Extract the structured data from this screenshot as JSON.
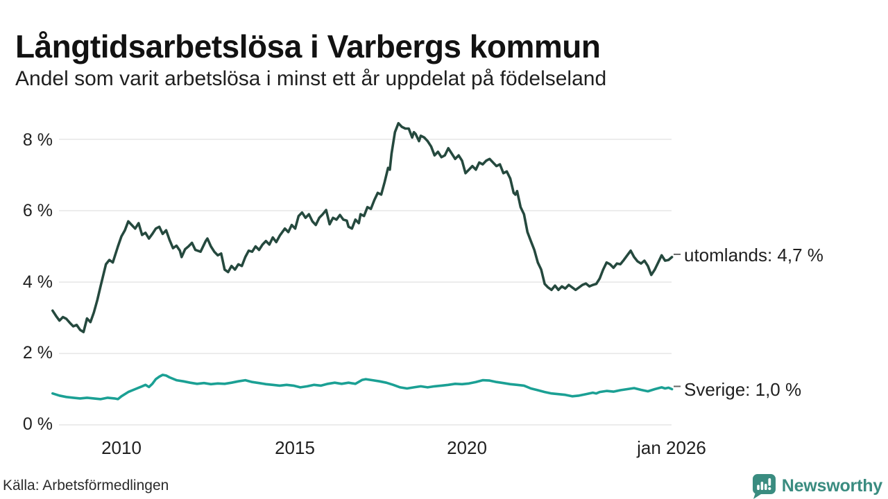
{
  "header": {
    "title": "Långtidsarbetslösa i Varbergs kommun",
    "subtitle": "Andel som varit arbetslösa i minst ett år uppdelat på födelseland"
  },
  "footer": {
    "source": "Källa: Arbetsförmedlingen",
    "brand": "Newsworthy"
  },
  "colors": {
    "utomlands_line": "#25493e",
    "sverige_line": "#1ba094",
    "gridline": "#e5e5e5",
    "connector": "#666666",
    "text": "#1f1f1f",
    "brand_teal": "#3a8c80"
  },
  "chart_data": {
    "type": "line",
    "title": "Långtidsarbetslösa i Varbergs kommun",
    "subtitle": "Andel som varit arbetslösa i minst ett år uppdelat på födelseland",
    "xlabel": "",
    "ylabel": "",
    "x_unit": "year (monthly data)",
    "xlim": [
      2008.0,
      2026.08
    ],
    "ylim": [
      0,
      8.6
    ],
    "grid": "horizontal",
    "legend_position": "right-end-labels",
    "y_ticks": [
      {
        "value": 8,
        "label": "8 %"
      },
      {
        "value": 6,
        "label": "6 %"
      },
      {
        "value": 4,
        "label": "4 %"
      },
      {
        "value": 2,
        "label": "2 %"
      },
      {
        "value": 0,
        "label": "0 %"
      }
    ],
    "x_ticks": [
      {
        "value": 2010,
        "label": "2010"
      },
      {
        "value": 2015,
        "label": "2015"
      },
      {
        "value": 2020,
        "label": "2020"
      },
      {
        "value": 2026,
        "label": "jan 2026"
      }
    ],
    "series": [
      {
        "name": "utomlands",
        "label": "utomlands: 4,7 %",
        "end_value": 4.7,
        "color": "#25493e",
        "points": [
          [
            2008.0,
            3.2
          ],
          [
            2008.1,
            3.05
          ],
          [
            2008.2,
            2.92
          ],
          [
            2008.3,
            3.02
          ],
          [
            2008.4,
            2.97
          ],
          [
            2008.5,
            2.86
          ],
          [
            2008.6,
            2.76
          ],
          [
            2008.7,
            2.8
          ],
          [
            2008.8,
            2.66
          ],
          [
            2008.9,
            2.6
          ],
          [
            2009.0,
            2.98
          ],
          [
            2009.1,
            2.88
          ],
          [
            2009.2,
            3.15
          ],
          [
            2009.3,
            3.5
          ],
          [
            2009.4,
            3.9
          ],
          [
            2009.55,
            4.5
          ],
          [
            2009.65,
            4.62
          ],
          [
            2009.75,
            4.55
          ],
          [
            2009.9,
            5.0
          ],
          [
            2010.0,
            5.28
          ],
          [
            2010.1,
            5.45
          ],
          [
            2010.2,
            5.7
          ],
          [
            2010.3,
            5.6
          ],
          [
            2010.4,
            5.5
          ],
          [
            2010.5,
            5.65
          ],
          [
            2010.6,
            5.32
          ],
          [
            2010.7,
            5.38
          ],
          [
            2010.8,
            5.22
          ],
          [
            2010.9,
            5.35
          ],
          [
            2011.0,
            5.5
          ],
          [
            2011.1,
            5.55
          ],
          [
            2011.2,
            5.35
          ],
          [
            2011.3,
            5.45
          ],
          [
            2011.4,
            5.18
          ],
          [
            2011.5,
            4.95
          ],
          [
            2011.6,
            5.02
          ],
          [
            2011.7,
            4.88
          ],
          [
            2011.75,
            4.7
          ],
          [
            2011.85,
            4.92
          ],
          [
            2011.95,
            5.0
          ],
          [
            2012.05,
            5.1
          ],
          [
            2012.15,
            4.9
          ],
          [
            2012.3,
            4.85
          ],
          [
            2012.45,
            5.15
          ],
          [
            2012.5,
            5.22
          ],
          [
            2012.6,
            5.0
          ],
          [
            2012.7,
            4.85
          ],
          [
            2012.8,
            4.75
          ],
          [
            2012.9,
            4.8
          ],
          [
            2013.0,
            4.35
          ],
          [
            2013.1,
            4.28
          ],
          [
            2013.2,
            4.45
          ],
          [
            2013.3,
            4.35
          ],
          [
            2013.4,
            4.5
          ],
          [
            2013.5,
            4.45
          ],
          [
            2013.6,
            4.7
          ],
          [
            2013.7,
            4.88
          ],
          [
            2013.8,
            4.85
          ],
          [
            2013.9,
            5.0
          ],
          [
            2014.0,
            4.9
          ],
          [
            2014.1,
            5.05
          ],
          [
            2014.2,
            5.15
          ],
          [
            2014.3,
            5.05
          ],
          [
            2014.4,
            5.25
          ],
          [
            2014.5,
            5.12
          ],
          [
            2014.6,
            5.3
          ],
          [
            2014.75,
            5.5
          ],
          [
            2014.85,
            5.4
          ],
          [
            2014.95,
            5.6
          ],
          [
            2015.05,
            5.5
          ],
          [
            2015.15,
            5.85
          ],
          [
            2015.25,
            5.95
          ],
          [
            2015.35,
            5.8
          ],
          [
            2015.45,
            5.9
          ],
          [
            2015.55,
            5.7
          ],
          [
            2015.65,
            5.6
          ],
          [
            2015.75,
            5.8
          ],
          [
            2015.85,
            5.9
          ],
          [
            2015.95,
            6.02
          ],
          [
            2016.05,
            5.62
          ],
          [
            2016.15,
            5.8
          ],
          [
            2016.25,
            5.75
          ],
          [
            2016.35,
            5.88
          ],
          [
            2016.45,
            5.75
          ],
          [
            2016.55,
            5.72
          ],
          [
            2016.6,
            5.55
          ],
          [
            2016.7,
            5.5
          ],
          [
            2016.8,
            5.75
          ],
          [
            2016.9,
            5.65
          ],
          [
            2016.95,
            5.9
          ],
          [
            2017.05,
            5.85
          ],
          [
            2017.15,
            6.1
          ],
          [
            2017.25,
            6.05
          ],
          [
            2017.35,
            6.3
          ],
          [
            2017.45,
            6.5
          ],
          [
            2017.55,
            6.45
          ],
          [
            2017.65,
            6.8
          ],
          [
            2017.75,
            7.2
          ],
          [
            2017.8,
            7.15
          ],
          [
            2017.85,
            7.6
          ],
          [
            2017.95,
            8.2
          ],
          [
            2018.05,
            8.45
          ],
          [
            2018.15,
            8.35
          ],
          [
            2018.25,
            8.3
          ],
          [
            2018.35,
            8.3
          ],
          [
            2018.45,
            8.05
          ],
          [
            2018.5,
            8.2
          ],
          [
            2018.55,
            8.15
          ],
          [
            2018.65,
            7.95
          ],
          [
            2018.7,
            8.1
          ],
          [
            2018.8,
            8.05
          ],
          [
            2018.9,
            7.95
          ],
          [
            2019.0,
            7.8
          ],
          [
            2019.1,
            7.55
          ],
          [
            2019.2,
            7.65
          ],
          [
            2019.3,
            7.5
          ],
          [
            2019.4,
            7.55
          ],
          [
            2019.5,
            7.75
          ],
          [
            2019.6,
            7.6
          ],
          [
            2019.7,
            7.45
          ],
          [
            2019.8,
            7.55
          ],
          [
            2019.9,
            7.4
          ],
          [
            2020.0,
            7.05
          ],
          [
            2020.1,
            7.15
          ],
          [
            2020.2,
            7.25
          ],
          [
            2020.3,
            7.15
          ],
          [
            2020.4,
            7.35
          ],
          [
            2020.5,
            7.3
          ],
          [
            2020.6,
            7.4
          ],
          [
            2020.7,
            7.45
          ],
          [
            2020.8,
            7.35
          ],
          [
            2020.9,
            7.25
          ],
          [
            2021.0,
            7.3
          ],
          [
            2021.1,
            7.05
          ],
          [
            2021.2,
            7.1
          ],
          [
            2021.3,
            6.9
          ],
          [
            2021.4,
            6.5
          ],
          [
            2021.45,
            6.45
          ],
          [
            2021.5,
            6.55
          ],
          [
            2021.6,
            6.1
          ],
          [
            2021.7,
            5.9
          ],
          [
            2021.8,
            5.4
          ],
          [
            2021.9,
            5.15
          ],
          [
            2022.0,
            4.9
          ],
          [
            2022.1,
            4.55
          ],
          [
            2022.2,
            4.35
          ],
          [
            2022.3,
            3.95
          ],
          [
            2022.4,
            3.85
          ],
          [
            2022.5,
            3.78
          ],
          [
            2022.6,
            3.9
          ],
          [
            2022.7,
            3.78
          ],
          [
            2022.8,
            3.88
          ],
          [
            2022.9,
            3.82
          ],
          [
            2023.0,
            3.92
          ],
          [
            2023.1,
            3.85
          ],
          [
            2023.2,
            3.78
          ],
          [
            2023.3,
            3.85
          ],
          [
            2023.4,
            3.92
          ],
          [
            2023.5,
            3.96
          ],
          [
            2023.6,
            3.88
          ],
          [
            2023.7,
            3.92
          ],
          [
            2023.8,
            3.95
          ],
          [
            2023.9,
            4.1
          ],
          [
            2024.0,
            4.35
          ],
          [
            2024.1,
            4.55
          ],
          [
            2024.2,
            4.5
          ],
          [
            2024.3,
            4.4
          ],
          [
            2024.4,
            4.52
          ],
          [
            2024.5,
            4.5
          ],
          [
            2024.6,
            4.62
          ],
          [
            2024.7,
            4.75
          ],
          [
            2024.8,
            4.88
          ],
          [
            2024.9,
            4.7
          ],
          [
            2025.0,
            4.58
          ],
          [
            2025.1,
            4.52
          ],
          [
            2025.2,
            4.6
          ],
          [
            2025.3,
            4.45
          ],
          [
            2025.4,
            4.2
          ],
          [
            2025.5,
            4.35
          ],
          [
            2025.6,
            4.55
          ],
          [
            2025.7,
            4.75
          ],
          [
            2025.8,
            4.6
          ],
          [
            2025.9,
            4.62
          ],
          [
            2026.0,
            4.7
          ]
        ]
      },
      {
        "name": "Sverige",
        "label": "Sverige: 1,0 %",
        "end_value": 1.0,
        "color": "#1ba094",
        "points": [
          [
            2008.0,
            0.88
          ],
          [
            2008.2,
            0.82
          ],
          [
            2008.4,
            0.78
          ],
          [
            2008.6,
            0.76
          ],
          [
            2008.8,
            0.74
          ],
          [
            2009.0,
            0.76
          ],
          [
            2009.2,
            0.74
          ],
          [
            2009.4,
            0.72
          ],
          [
            2009.6,
            0.76
          ],
          [
            2009.8,
            0.74
          ],
          [
            2009.9,
            0.72
          ],
          [
            2010.0,
            0.8
          ],
          [
            2010.2,
            0.92
          ],
          [
            2010.4,
            1.0
          ],
          [
            2010.6,
            1.08
          ],
          [
            2010.7,
            1.12
          ],
          [
            2010.8,
            1.06
          ],
          [
            2010.9,
            1.15
          ],
          [
            2011.0,
            1.28
          ],
          [
            2011.1,
            1.35
          ],
          [
            2011.2,
            1.4
          ],
          [
            2011.3,
            1.38
          ],
          [
            2011.4,
            1.33
          ],
          [
            2011.6,
            1.25
          ],
          [
            2011.8,
            1.22
          ],
          [
            2012.0,
            1.18
          ],
          [
            2012.2,
            1.15
          ],
          [
            2012.4,
            1.17
          ],
          [
            2012.6,
            1.14
          ],
          [
            2012.8,
            1.16
          ],
          [
            2013.0,
            1.15
          ],
          [
            2013.2,
            1.18
          ],
          [
            2013.4,
            1.22
          ],
          [
            2013.6,
            1.25
          ],
          [
            2013.8,
            1.2
          ],
          [
            2014.0,
            1.17
          ],
          [
            2014.2,
            1.14
          ],
          [
            2014.4,
            1.12
          ],
          [
            2014.6,
            1.1
          ],
          [
            2014.8,
            1.12
          ],
          [
            2015.0,
            1.1
          ],
          [
            2015.2,
            1.05
          ],
          [
            2015.4,
            1.08
          ],
          [
            2015.6,
            1.12
          ],
          [
            2015.8,
            1.1
          ],
          [
            2016.0,
            1.15
          ],
          [
            2016.2,
            1.18
          ],
          [
            2016.4,
            1.15
          ],
          [
            2016.6,
            1.18
          ],
          [
            2016.8,
            1.15
          ],
          [
            2017.0,
            1.26
          ],
          [
            2017.1,
            1.28
          ],
          [
            2017.3,
            1.25
          ],
          [
            2017.5,
            1.22
          ],
          [
            2017.7,
            1.18
          ],
          [
            2017.9,
            1.12
          ],
          [
            2018.1,
            1.05
          ],
          [
            2018.3,
            1.02
          ],
          [
            2018.5,
            1.05
          ],
          [
            2018.7,
            1.08
          ],
          [
            2018.9,
            1.05
          ],
          [
            2019.1,
            1.08
          ],
          [
            2019.3,
            1.1
          ],
          [
            2019.5,
            1.12
          ],
          [
            2019.7,
            1.15
          ],
          [
            2019.9,
            1.14
          ],
          [
            2020.1,
            1.16
          ],
          [
            2020.3,
            1.2
          ],
          [
            2020.5,
            1.25
          ],
          [
            2020.7,
            1.24
          ],
          [
            2020.9,
            1.2
          ],
          [
            2021.1,
            1.17
          ],
          [
            2021.3,
            1.14
          ],
          [
            2021.5,
            1.12
          ],
          [
            2021.7,
            1.1
          ],
          [
            2021.9,
            1.02
          ],
          [
            2022.1,
            0.97
          ],
          [
            2022.3,
            0.92
          ],
          [
            2022.5,
            0.88
          ],
          [
            2022.7,
            0.86
          ],
          [
            2022.9,
            0.84
          ],
          [
            2023.1,
            0.8
          ],
          [
            2023.3,
            0.82
          ],
          [
            2023.5,
            0.86
          ],
          [
            2023.7,
            0.9
          ],
          [
            2023.8,
            0.88
          ],
          [
            2023.9,
            0.92
          ],
          [
            2024.1,
            0.95
          ],
          [
            2024.3,
            0.93
          ],
          [
            2024.5,
            0.97
          ],
          [
            2024.7,
            1.0
          ],
          [
            2024.9,
            1.03
          ],
          [
            2025.1,
            0.98
          ],
          [
            2025.3,
            0.94
          ],
          [
            2025.5,
            1.0
          ],
          [
            2025.7,
            1.05
          ],
          [
            2025.8,
            1.02
          ],
          [
            2025.9,
            1.04
          ],
          [
            2026.0,
            1.0
          ]
        ]
      }
    ]
  }
}
